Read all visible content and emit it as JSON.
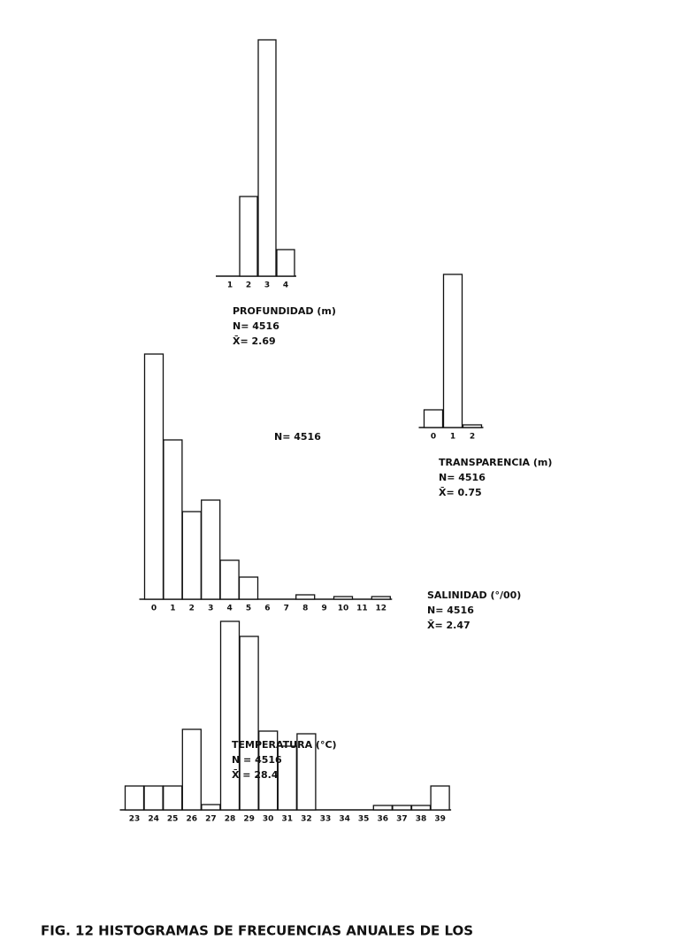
{
  "chart_data": [
    {
      "type": "bar",
      "xlabel": "PROFUNDIDAD (m)",
      "annotations": [
        "N= 4516",
        "X̄= 2.69"
      ],
      "categories": [
        "1",
        "2",
        "3",
        "4"
      ],
      "values": [
        0,
        90,
        267,
        30
      ],
      "ylim": [
        0,
        270
      ],
      "color": "#ffffff"
    },
    {
      "type": "bar",
      "xlabel": "TRANSPARENCIA (m)",
      "annotations": [
        "N= 4516",
        "X̄= 0.75"
      ],
      "categories": [
        "0",
        "1",
        "2"
      ],
      "values": [
        20,
        173,
        3
      ],
      "ylim": [
        0,
        175
      ],
      "color": "#ffffff"
    },
    {
      "type": "bar",
      "xlabel": "SALINIDAD (°/00)",
      "annotations": [
        "N= 4516",
        "X̄= 2.47",
        "N= 4516"
      ],
      "categories": [
        "0",
        "1",
        "2",
        "3",
        "4",
        "5",
        "6",
        "7",
        "8",
        "9",
        "10",
        "11",
        "12"
      ],
      "values": [
        277,
        180,
        99,
        112,
        44,
        25,
        0,
        0,
        5,
        0,
        3,
        0,
        3
      ],
      "ylim": [
        0,
        280
      ],
      "color": "#ffffff"
    },
    {
      "type": "bar",
      "xlabel": "TEMPERATURA (°C)",
      "annotations": [
        "N = 4516",
        "X̄ = 28.4"
      ],
      "categories": [
        "23",
        "24",
        "25",
        "26",
        "27",
        "28",
        "29",
        "30",
        "31",
        "32",
        "33",
        "34",
        "35",
        "36",
        "37",
        "38",
        "39"
      ],
      "values": [
        27,
        27,
        27,
        91,
        6,
        213,
        196,
        89,
        72,
        86,
        0,
        0,
        0,
        5,
        5,
        5,
        27
      ],
      "ylim": [
        0,
        215
      ],
      "color": "#ffffff"
    },
    {
      "type": "caption",
      "title": "FIG. 12   HISTOGRAMAS DE FRECUENCIAS ANUALES DE LOS"
    }
  ]
}
